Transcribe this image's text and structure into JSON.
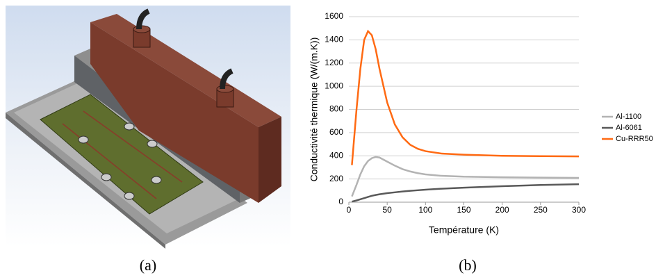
{
  "chart_data": {
    "type": "line",
    "x_label": "Température (K)",
    "y_label": "Conductivité thermique (W/(m.K))",
    "x": [
      4,
      10,
      15,
      20,
      25,
      30,
      35,
      40,
      50,
      60,
      70,
      80,
      90,
      100,
      120,
      150,
      200,
      250,
      300
    ],
    "series": [
      {
        "name": "Al-1100",
        "color": "#b3b3b3",
        "values": [
          50,
          150,
          240,
          310,
          355,
          380,
          390,
          385,
          350,
          315,
          285,
          265,
          250,
          240,
          228,
          220,
          215,
          212,
          210
        ]
      },
      {
        "name": "Al-6061",
        "color": "#595959",
        "values": [
          5,
          15,
          25,
          35,
          45,
          55,
          62,
          68,
          78,
          85,
          92,
          98,
          103,
          108,
          116,
          125,
          138,
          148,
          155
        ]
      },
      {
        "name": "Cu-RRR50",
        "color": "#ff6a13",
        "values": [
          320,
          800,
          1150,
          1400,
          1475,
          1440,
          1320,
          1150,
          860,
          670,
          560,
          495,
          460,
          440,
          420,
          410,
          400,
          397,
          395
        ]
      }
    ],
    "xlim": [
      0,
      300
    ],
    "xticks": [
      0,
      50,
      100,
      150,
      200,
      250,
      300
    ],
    "ylim": [
      0,
      1600
    ],
    "yticks": [
      0,
      200,
      400,
      600,
      800,
      1000,
      1200,
      1400,
      1600
    ],
    "grid": true,
    "legend": "right"
  },
  "captions": [
    "(a)",
    "(b)"
  ]
}
